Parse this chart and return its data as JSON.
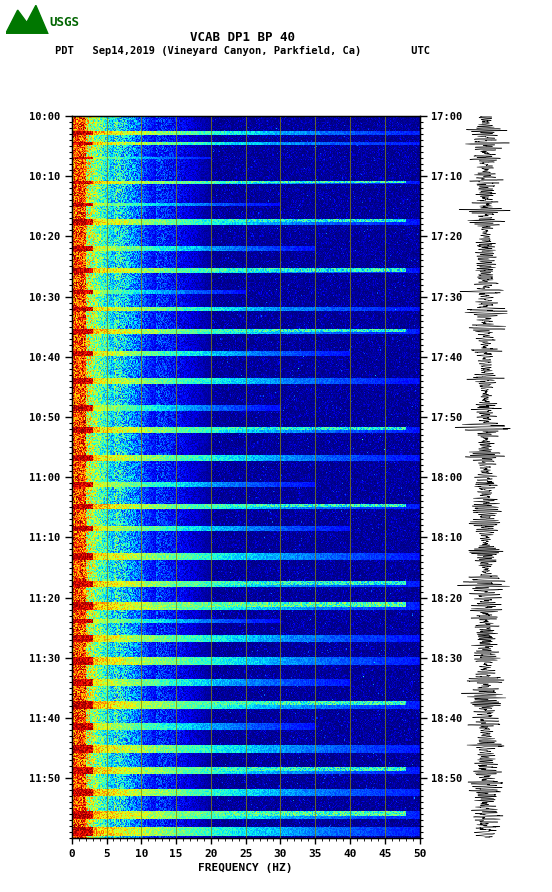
{
  "title_line1": "VCAB DP1 BP 40",
  "title_line2": "PDT   Sep14,2019 (Vineyard Canyon, Parkfield, Ca)        UTC",
  "xlabel": "FREQUENCY (HZ)",
  "freq_min": 0,
  "freq_max": 50,
  "freq_ticks": [
    0,
    5,
    10,
    15,
    20,
    25,
    30,
    35,
    40,
    45,
    50
  ],
  "time_left_labels": [
    "10:00",
    "10:10",
    "10:20",
    "10:30",
    "10:40",
    "10:50",
    "11:00",
    "11:10",
    "11:20",
    "11:30",
    "11:40",
    "11:50"
  ],
  "time_right_labels": [
    "17:00",
    "17:10",
    "17:20",
    "17:30",
    "17:40",
    "17:50",
    "18:00",
    "18:10",
    "18:20",
    "18:30",
    "18:40",
    "18:50"
  ],
  "n_time_steps": 660,
  "n_freq_steps": 500,
  "vertical_line_color": "#888800",
  "vertical_line_freq": [
    5,
    10,
    15,
    20,
    25,
    30,
    35,
    40,
    45
  ],
  "colormap": "jet",
  "event_rows": [
    [
      15,
      18,
      0,
      500,
      0.95
    ],
    [
      25,
      27,
      0,
      500,
      0.9
    ],
    [
      38,
      40,
      0,
      200,
      0.85
    ],
    [
      60,
      63,
      0,
      500,
      0.92
    ],
    [
      80,
      83,
      0,
      300,
      0.8
    ],
    [
      95,
      100,
      0,
      500,
      0.88
    ],
    [
      120,
      124,
      0,
      350,
      0.85
    ],
    [
      140,
      144,
      0,
      500,
      0.9
    ],
    [
      160,
      163,
      0,
      250,
      0.82
    ],
    [
      175,
      179,
      0,
      500,
      0.87
    ],
    [
      195,
      200,
      0,
      500,
      0.93
    ],
    [
      215,
      220,
      0,
      400,
      0.88
    ],
    [
      240,
      246,
      0,
      500,
      0.86
    ],
    [
      265,
      270,
      0,
      300,
      0.84
    ],
    [
      285,
      290,
      0,
      500,
      0.91
    ],
    [
      310,
      316,
      0,
      500,
      0.89
    ],
    [
      335,
      340,
      0,
      350,
      0.85
    ],
    [
      355,
      360,
      0,
      500,
      0.93
    ],
    [
      375,
      380,
      0,
      400,
      0.87
    ],
    [
      400,
      406,
      0,
      500,
      0.9
    ],
    [
      425,
      431,
      0,
      500,
      0.92
    ],
    [
      445,
      452,
      0,
      500,
      0.95
    ],
    [
      460,
      464,
      0,
      300,
      0.83
    ],
    [
      475,
      481,
      0,
      500,
      0.88
    ],
    [
      495,
      502,
      0,
      500,
      0.91
    ],
    [
      515,
      521,
      0,
      400,
      0.87
    ],
    [
      535,
      542,
      0,
      500,
      0.93
    ],
    [
      555,
      561,
      0,
      350,
      0.86
    ],
    [
      575,
      582,
      0,
      500,
      0.9
    ],
    [
      595,
      602,
      0,
      500,
      0.92
    ],
    [
      615,
      622,
      0,
      500,
      0.94
    ],
    [
      635,
      643,
      0,
      500,
      0.96
    ],
    [
      650,
      658,
      0,
      500,
      0.95
    ]
  ]
}
